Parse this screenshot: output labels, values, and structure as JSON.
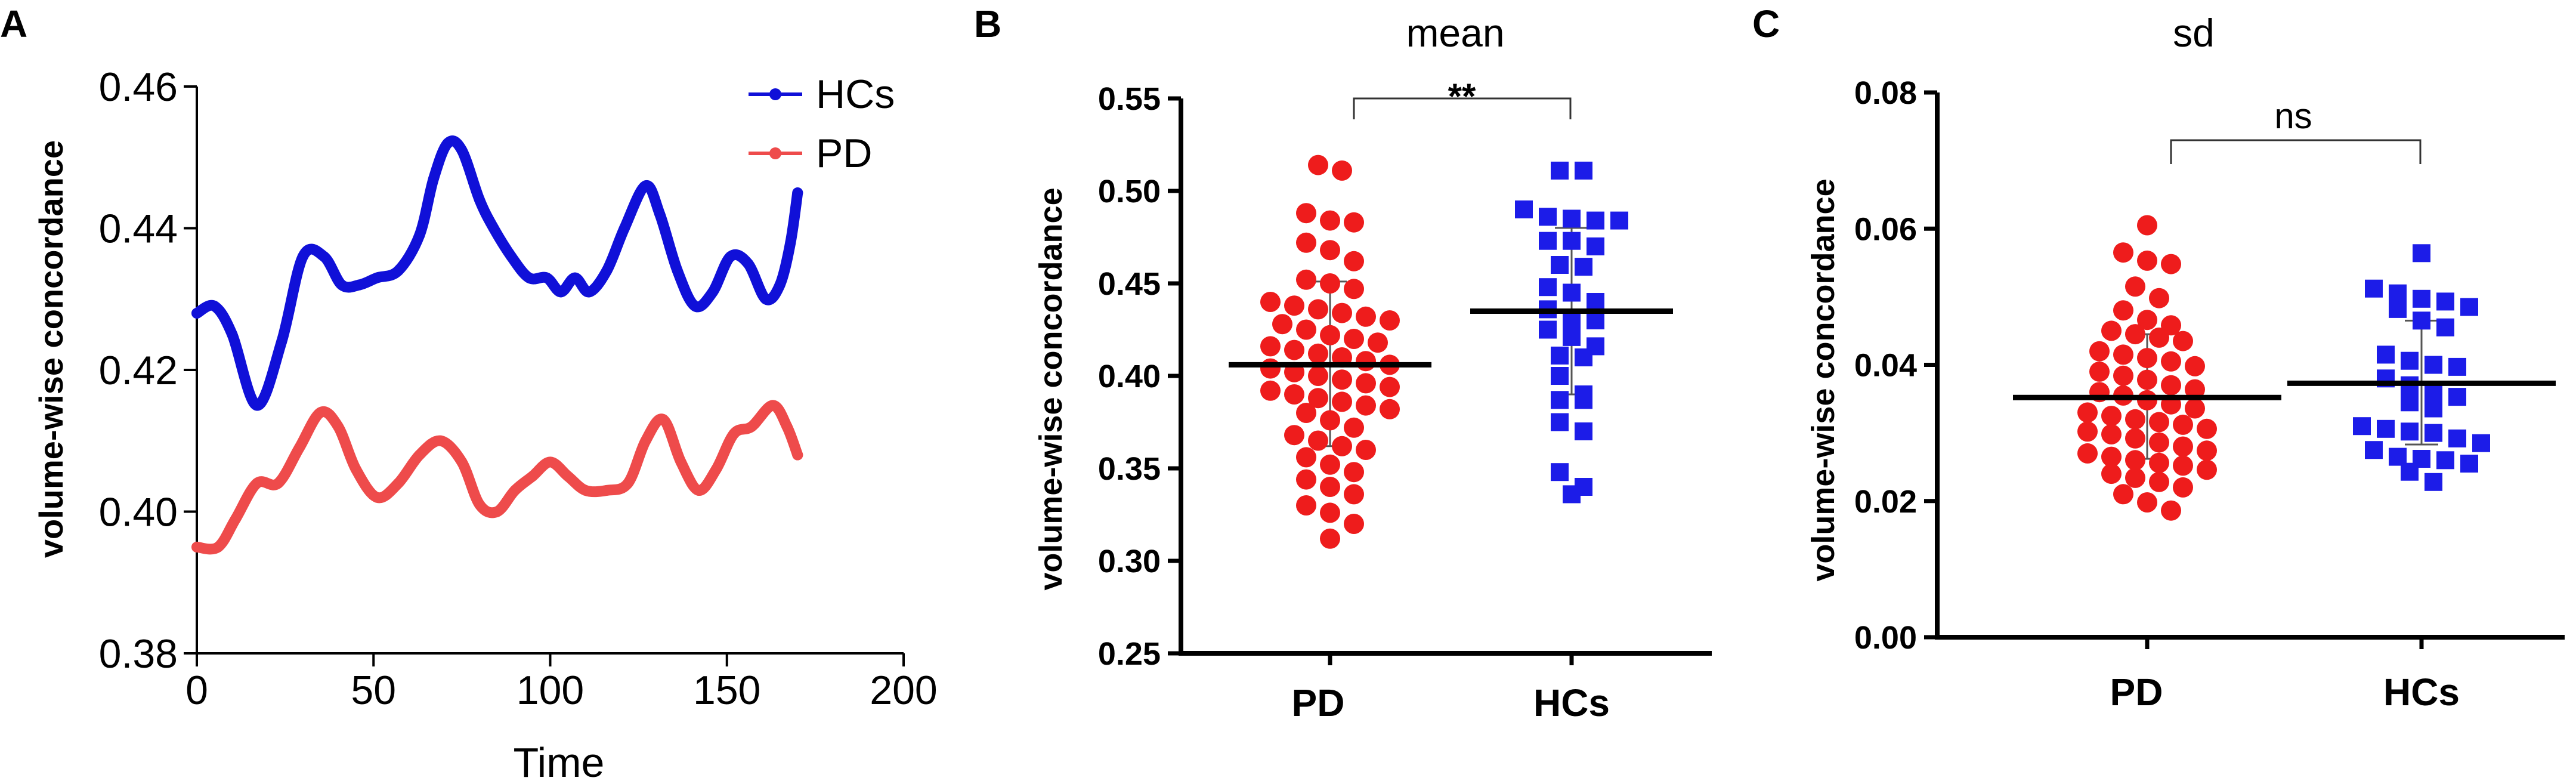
{
  "panels": {
    "a": {
      "letter": "A"
    },
    "b": {
      "letter": "B"
    },
    "c": {
      "letter": "C"
    }
  },
  "colors": {
    "hc": "#1010d8",
    "pd": "#ee4b4b",
    "pd_dot": "#ee1c1c",
    "hc_square": "#1c1ce8"
  },
  "chart_data": [
    {
      "type": "line",
      "ylabel": "volume-wise  concordance",
      "xlabel": "Time",
      "xlim": [
        0,
        200
      ],
      "ylim": [
        0.38,
        0.46
      ],
      "xticks": [
        "0",
        "50",
        "100",
        "150",
        "200"
      ],
      "yticks": [
        "0.38",
        "0.40",
        "0.42",
        "0.44",
        "0.46"
      ],
      "legend": [
        "HCs",
        "PD"
      ],
      "series": [
        {
          "name": "HCs",
          "x": [
            0,
            5,
            10,
            17,
            24,
            30,
            36,
            41,
            46,
            51,
            57,
            63,
            67,
            71,
            75,
            80,
            84,
            89,
            94,
            99,
            103,
            107,
            111,
            116,
            121,
            127,
            131,
            136,
            141,
            146,
            151,
            156,
            161,
            165,
            168,
            170
          ],
          "y": [
            0.428,
            0.429,
            0.425,
            0.415,
            0.424,
            0.436,
            0.436,
            0.432,
            0.432,
            0.433,
            0.434,
            0.439,
            0.447,
            0.452,
            0.451,
            0.444,
            0.44,
            0.436,
            0.433,
            0.433,
            0.431,
            0.433,
            0.431,
            0.434,
            0.44,
            0.446,
            0.442,
            0.434,
            0.429,
            0.431,
            0.436,
            0.435,
            0.43,
            0.432,
            0.438,
            0.445
          ]
        },
        {
          "name": "PD",
          "x": [
            0,
            6,
            11,
            17,
            23,
            29,
            35,
            40,
            45,
            51,
            57,
            63,
            69,
            75,
            80,
            85,
            90,
            95,
            100,
            105,
            110,
            116,
            122,
            127,
            132,
            137,
            142,
            147,
            152,
            157,
            163,
            167,
            170
          ],
          "y": [
            0.395,
            0.395,
            0.399,
            0.404,
            0.404,
            0.409,
            0.414,
            0.412,
            0.406,
            0.402,
            0.404,
            0.408,
            0.41,
            0.407,
            0.401,
            0.4,
            0.403,
            0.405,
            0.407,
            0.405,
            0.403,
            0.403,
            0.404,
            0.41,
            0.413,
            0.407,
            0.403,
            0.406,
            0.411,
            0.412,
            0.415,
            0.412,
            0.408
          ]
        }
      ]
    },
    {
      "type": "scatter",
      "title": "mean",
      "ylabel": "volume-wise  concordance",
      "categories": [
        "PD",
        "HCs"
      ],
      "ylim": [
        0.25,
        0.55
      ],
      "yticks": [
        "0.25",
        "0.30",
        "0.35",
        "0.40",
        "0.45",
        "0.50",
        "0.55"
      ],
      "significance": "**",
      "groups": [
        {
          "name": "PD",
          "marker": "circle",
          "mean": 0.406,
          "sd_low": 0.362,
          "sd_high": 0.451,
          "values": [
            0.514,
            0.511,
            0.488,
            0.484,
            0.483,
            0.472,
            0.468,
            0.462,
            0.452,
            0.45,
            0.447,
            0.44,
            0.438,
            0.436,
            0.434,
            0.432,
            0.43,
            0.428,
            0.425,
            0.422,
            0.42,
            0.418,
            0.416,
            0.414,
            0.412,
            0.41,
            0.408,
            0.406,
            0.404,
            0.402,
            0.4,
            0.398,
            0.396,
            0.394,
            0.392,
            0.39,
            0.388,
            0.386,
            0.384,
            0.382,
            0.38,
            0.376,
            0.372,
            0.368,
            0.365,
            0.362,
            0.36,
            0.356,
            0.352,
            0.348,
            0.344,
            0.34,
            0.336,
            0.33,
            0.326,
            0.32,
            0.312
          ]
        },
        {
          "name": "HCs",
          "marker": "square",
          "mean": 0.435,
          "sd_low": 0.39,
          "sd_high": 0.48,
          "values": [
            0.511,
            0.511,
            0.49,
            0.486,
            0.485,
            0.484,
            0.484,
            0.473,
            0.473,
            0.47,
            0.46,
            0.459,
            0.448,
            0.445,
            0.44,
            0.436,
            0.43,
            0.43,
            0.425,
            0.421,
            0.416,
            0.411,
            0.41,
            0.4,
            0.39,
            0.387,
            0.387,
            0.375,
            0.37,
            0.348,
            0.34,
            0.336
          ]
        }
      ]
    },
    {
      "type": "scatter",
      "title": "sd",
      "ylabel": "volume-wise  concordance",
      "categories": [
        "PD",
        "HCs"
      ],
      "ylim": [
        0.0,
        0.08
      ],
      "yticks": [
        "0.00",
        "0.02",
        "0.04",
        "0.06",
        "0.08"
      ],
      "significance": "ns",
      "groups": [
        {
          "name": "PD",
          "marker": "circle",
          "mean": 0.0352,
          "sd_low": 0.0262,
          "sd_high": 0.0445,
          "values": [
            0.0605,
            0.0565,
            0.0553,
            0.0548,
            0.0515,
            0.0498,
            0.048,
            0.0466,
            0.0458,
            0.045,
            0.0445,
            0.044,
            0.0435,
            0.042,
            0.0415,
            0.041,
            0.0405,
            0.0398,
            0.039,
            0.0384,
            0.0378,
            0.037,
            0.0364,
            0.036,
            0.0355,
            0.0348,
            0.0342,
            0.0336,
            0.033,
            0.0325,
            0.032,
            0.0316,
            0.0312,
            0.0306,
            0.0302,
            0.0298,
            0.0292,
            0.0286,
            0.028,
            0.0274,
            0.027,
            0.0265,
            0.026,
            0.0256,
            0.0252,
            0.0246,
            0.024,
            0.0234,
            0.0228,
            0.022,
            0.021,
            0.0198,
            0.0186
          ]
        },
        {
          "name": "HCs",
          "marker": "square",
          "mean": 0.0373,
          "sd_low": 0.0283,
          "sd_high": 0.0465,
          "values": [
            0.0564,
            0.0512,
            0.0505,
            0.0497,
            0.0493,
            0.0485,
            0.0482,
            0.0465,
            0.0455,
            0.0415,
            0.0406,
            0.04,
            0.0397,
            0.038,
            0.037,
            0.0362,
            0.0353,
            0.0345,
            0.0336,
            0.031,
            0.0306,
            0.0302,
            0.03,
            0.0292,
            0.0285,
            0.0275,
            0.0265,
            0.0262,
            0.026,
            0.0255,
            0.0243,
            0.0228
          ]
        }
      ]
    }
  ]
}
